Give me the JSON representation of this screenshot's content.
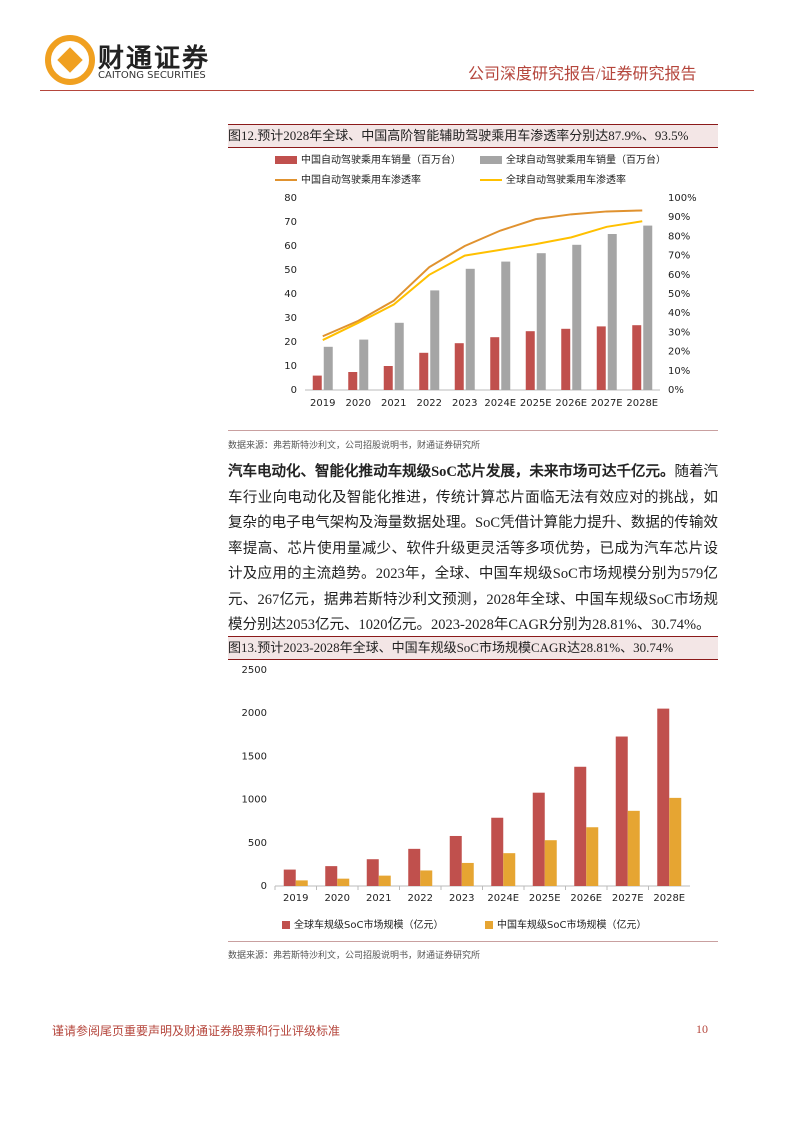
{
  "header": {
    "logo_cn": "财通证券",
    "logo_en": "CAITONG SECURITIES",
    "report_type": "公司深度研究报告/证券研究报告"
  },
  "chart_data": [
    {
      "type": "bar_line",
      "title": "图12.预计2028年全球、中国高阶智能辅助驾驶乘用车渗透率分别达87.9%、93.5%",
      "source": "数据来源：弗若斯特沙利文，公司招股说明书，财通证券研究所",
      "categories": [
        "2019",
        "2020",
        "2021",
        "2022",
        "2023",
        "2024E",
        "2025E",
        "2026E",
        "2027E",
        "2028E"
      ],
      "series": [
        {
          "name": "中国自动驾驶乘用车销量（百万台）",
          "type": "bar",
          "color": "#c0504d",
          "values": [
            6,
            7.5,
            10,
            15.5,
            19.5,
            22,
            24.5,
            25.5,
            26.5,
            27
          ]
        },
        {
          "name": "全球自动驾驶乘用车销量（百万台）",
          "type": "bar",
          "color": "#a5a5a5",
          "values": [
            18,
            21,
            28,
            41.5,
            50.5,
            53.5,
            57,
            60.5,
            65,
            68.5
          ]
        },
        {
          "name": "中国自动驾驶乘用车渗透率",
          "type": "line",
          "axis": "y2",
          "color": "#e0922f",
          "values": [
            28,
            36,
            46.5,
            64,
            75,
            83,
            89,
            91.5,
            93,
            93.5
          ]
        },
        {
          "name": "全球自动驾驶乘用车渗透率",
          "type": "line",
          "axis": "y2",
          "color": "#ffc000",
          "values": [
            26,
            35,
            44.5,
            60,
            70,
            73,
            76,
            79.5,
            85,
            87.9
          ]
        }
      ],
      "ylim": [
        0,
        80
      ],
      "yticks": [
        0,
        10,
        20,
        30,
        40,
        50,
        60,
        70,
        80
      ],
      "y2lim": [
        0,
        100
      ],
      "y2ticks": [
        {
          "value": 0,
          "label": "0%"
        },
        {
          "value": 10,
          "label": "10%"
        },
        {
          "value": 20,
          "label": "20%"
        },
        {
          "value": 30,
          "label": "30%"
        },
        {
          "value": 40,
          "label": "40%"
        },
        {
          "value": 50,
          "label": "50%"
        },
        {
          "value": 60,
          "label": "60%"
        },
        {
          "value": 70,
          "label": "70%"
        },
        {
          "value": 80,
          "label": "80%"
        },
        {
          "value": 90,
          "label": "90%"
        },
        {
          "value": 100,
          "label": "100%"
        }
      ],
      "legend": "top",
      "grid": false
    },
    {
      "type": "bar",
      "title": "图13.预计2023-2028年全球、中国车规级SoC市场规模CAGR达28.81%、30.74%",
      "source": "数据来源：弗若斯特沙利文，公司招股说明书，财通证券研究所",
      "categories": [
        "2019",
        "2020",
        "2021",
        "2022",
        "2023",
        "2024E",
        "2025E",
        "2026E",
        "2027E",
        "2028E"
      ],
      "series": [
        {
          "name": "全球车规级SoC市场规模（亿元）",
          "type": "bar",
          "color": "#c0504d",
          "values": [
            190,
            230,
            310,
            430,
            579,
            790,
            1080,
            1380,
            1730,
            2053
          ]
        },
        {
          "name": "中国车规级SoC市场规模（亿元）",
          "type": "bar",
          "color": "#e6a532",
          "values": [
            65,
            85,
            120,
            180,
            267,
            380,
            530,
            680,
            870,
            1020
          ]
        }
      ],
      "ylim": [
        0,
        2500
      ],
      "yticks": [
        0,
        500,
        1000,
        1500,
        2000,
        2500
      ],
      "legend": "bottom",
      "grid": false
    }
  ],
  "body": {
    "lead": "汽车电动化、智能化推动车规级SoC芯片发展，未来市场可达千亿元。",
    "text": "随着汽车行业向电动化及智能化推进，传统计算芯片面临无法有效应对的挑战，如复杂的电子电气架构及海量数据处理。SoC凭借计算能力提升、数据的传输效率提高、芯片使用量减少、软件升级更灵活等多项优势，已成为汽车芯片设计及应用的主流趋势。2023年，全球、中国车规级SoC市场规模分别为579亿元、267亿元，据弗若斯特沙利文预测，2028年全球、中国车规级SoC市场规模分别达2053亿元、1020亿元。2023-2028年CAGR分别为28.81%、30.74%。"
  },
  "footer": {
    "note": "谨请参阅尾页重要声明及财通证券股票和行业评级标准",
    "page": "10"
  }
}
